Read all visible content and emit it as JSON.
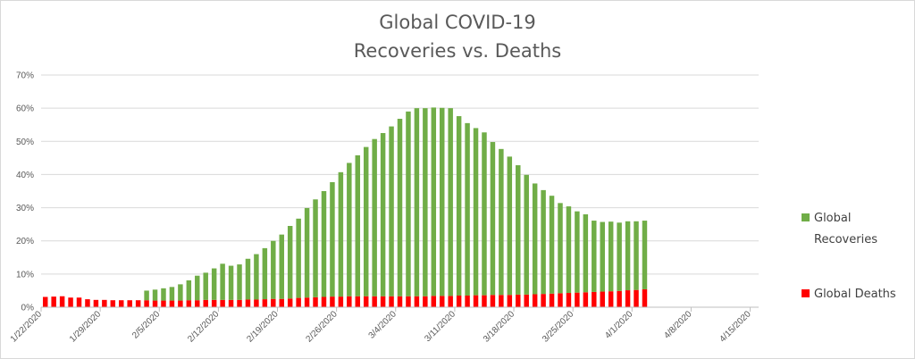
{
  "chart_data": {
    "type": "bar",
    "stacked": true,
    "title_lines": [
      "Global COVID-19",
      "Recoveries vs. Deaths"
    ],
    "xlabel": "",
    "ylabel": "",
    "ylim": [
      0,
      70
    ],
    "y_ticks": [
      "0%",
      "10%",
      "20%",
      "30%",
      "40%",
      "50%",
      "60%",
      "70%"
    ],
    "x_tick_labels": [
      "1/22/2020",
      "1/29/2020",
      "2/5/2020",
      "2/12/2020",
      "2/19/2020",
      "2/26/2020",
      "3/4/2020",
      "3/11/2020",
      "3/18/2020",
      "3/25/2020",
      "4/1/2020",
      "4/8/2020",
      "4/15/2020"
    ],
    "x_start": "1/22/2020",
    "x_end": "4/15/2020",
    "grid": true,
    "legend_position": "right",
    "series": [
      {
        "name": "Global Deaths",
        "color": "#ff0000",
        "values": [
          3.1,
          3.2,
          3.3,
          2.9,
          2.9,
          2.4,
          2.2,
          2.2,
          2.1,
          2.1,
          2.1,
          2.1,
          2.1,
          2.0,
          2.0,
          2.0,
          2.0,
          2.1,
          2.1,
          2.2,
          2.2,
          2.2,
          2.2,
          2.2,
          2.3,
          2.3,
          2.4,
          2.5,
          2.5,
          2.6,
          2.8,
          2.9,
          3.0,
          3.1,
          3.2,
          3.2,
          3.3,
          3.3,
          3.3,
          3.3,
          3.3,
          3.3,
          3.3,
          3.3,
          3.3,
          3.3,
          3.4,
          3.4,
          3.4,
          3.5,
          3.5,
          3.6,
          3.6,
          3.7,
          3.7,
          3.7,
          3.8,
          3.8,
          3.9,
          4.0,
          4.1,
          4.2,
          4.3,
          4.4,
          4.5,
          4.6,
          4.7,
          4.8,
          4.9,
          5.1,
          5.2,
          5.4
        ]
      },
      {
        "name": "Global Recoveries",
        "color": "#70ad47",
        "values": [
          0,
          0,
          0,
          0,
          0,
          0,
          0,
          0,
          0,
          0,
          0,
          0,
          2.9,
          3.3,
          3.7,
          4.1,
          4.9,
          6.0,
          7.4,
          8.2,
          9.5,
          10.9,
          10.3,
          10.7,
          12.3,
          13.7,
          15.4,
          17.5,
          19.4,
          21.9,
          23.9,
          27.0,
          29.5,
          31.9,
          34.5,
          37.5,
          40.2,
          42.5,
          45.0,
          47.4,
          49.2,
          51.2,
          53.5,
          55.7,
          56.7,
          56.7,
          56.8,
          56.7,
          56.6,
          54.1,
          52.0,
          50.4,
          49.1,
          46.1,
          44.0,
          41.7,
          39.0,
          36.1,
          33.4,
          31.3,
          29.5,
          27.2,
          26.1,
          24.5,
          23.5,
          21.5,
          21.0,
          21.0,
          20.6,
          20.8,
          20.7,
          20.7
        ]
      }
    ]
  }
}
